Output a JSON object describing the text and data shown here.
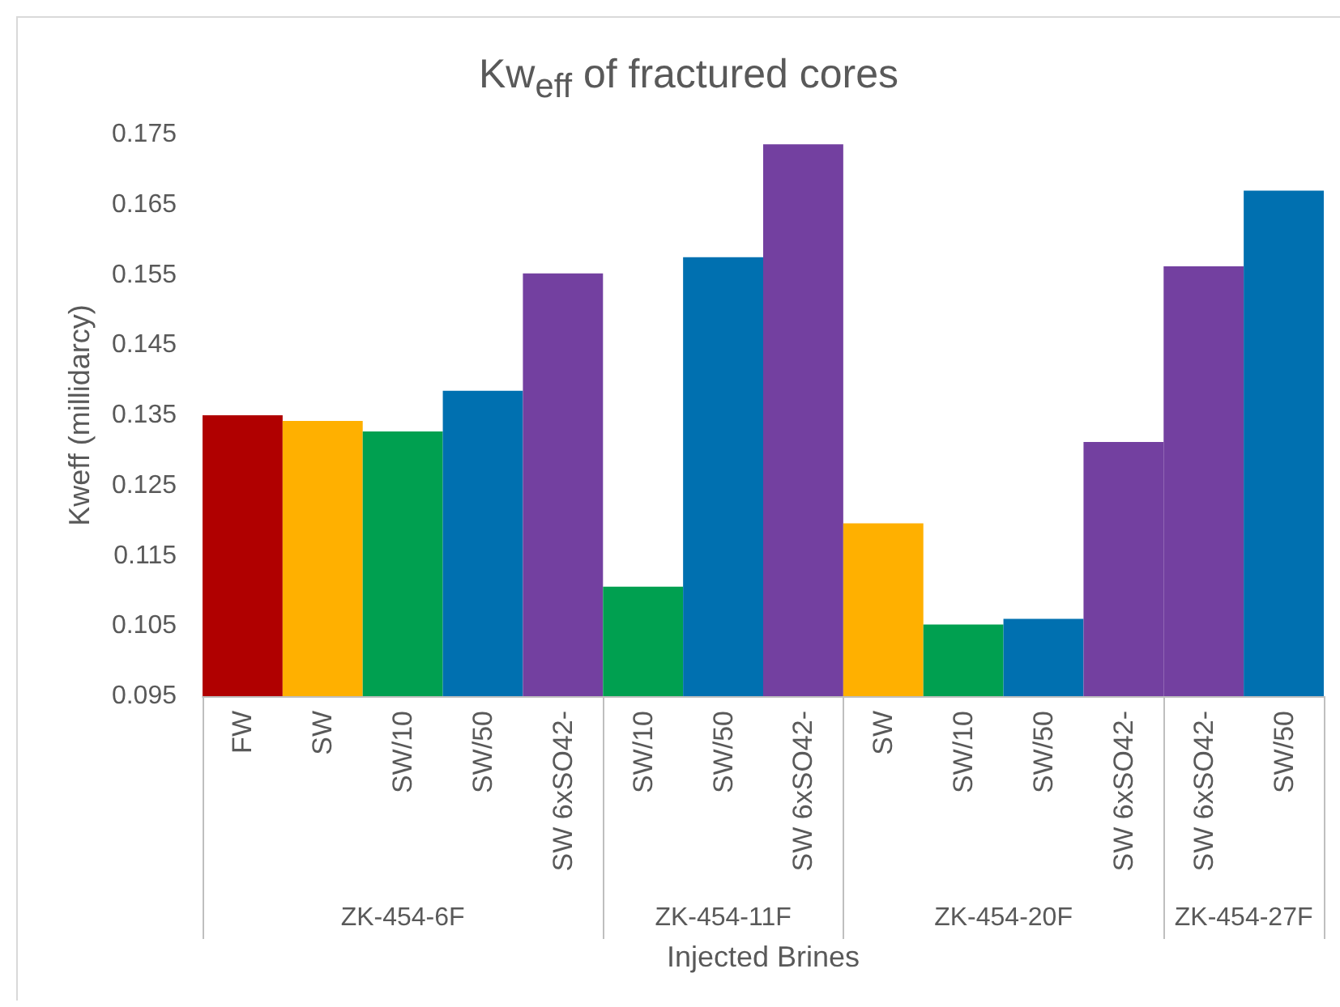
{
  "chart_data": {
    "type": "bar",
    "title": "Kw$_{eff}$ of fractured cores",
    "xlabel": "Injected Brines",
    "ylabel": "Kweff (millidarcy)",
    "categories": [
      "FW",
      "SW",
      "SW/10",
      "SW/50",
      "SW 6xSO42-",
      "SW/10",
      "SW/50",
      "SW 6xSO42-",
      "SW",
      "SW/10",
      "SW/50",
      "SW 6xSO42-",
      "SW 6xSO42-",
      "SW/50"
    ],
    "series": [
      {
        "values": [
          0.135,
          0.1342,
          0.1327,
          0.1385,
          0.1552,
          null,
          null,
          null,
          null,
          null,
          null,
          null,
          null,
          null
        ],
        "colors": [
          "#b00000",
          "#ffb000",
          "#00a050",
          "#0070b0",
          "#7340a0",
          null,
          null,
          null,
          null,
          null,
          null,
          null,
          null,
          null
        ]
      },
      {
        "values": [
          null,
          null,
          null,
          null,
          null,
          0.1106,
          0.1575,
          0.1736,
          null,
          null,
          null,
          null,
          null,
          null
        ],
        "colors": [
          null,
          null,
          null,
          null,
          null,
          "#00a050",
          "#0070b0",
          "#7340a0",
          null,
          null,
          null,
          null,
          null,
          null
        ]
      },
      {
        "values": [
          null,
          null,
          null,
          null,
          null,
          null,
          null,
          null,
          0.1196,
          0.1052,
          0.106,
          0.1312,
          null,
          null
        ],
        "colors": [
          null,
          null,
          null,
          null,
          null,
          null,
          null,
          null,
          "#ffb000",
          "#00a050",
          "#0070b0",
          "#7340a0",
          null,
          null
        ]
      },
      {
        "values": [
          null,
          null,
          null,
          null,
          null,
          null,
          null,
          null,
          null,
          null,
          null,
          null,
          0.1562,
          0.167
        ],
        "colors": [
          null,
          null,
          null,
          null,
          null,
          null,
          null,
          null,
          null,
          null,
          null,
          null,
          "#7340a0",
          "#0070b0"
        ]
      }
    ],
    "annotations": [
      "ZK-454-6F",
      "ZK-454-11F",
      "ZK-454-20F",
      "ZK-454-27F"
    ],
    "ylim": [
      0.095,
      0.175
    ],
    "yticks": [
      0.095,
      0.105,
      0.115,
      0.125,
      0.135,
      0.145,
      0.155,
      0.165,
      0.175
    ],
    "grid": false
  }
}
